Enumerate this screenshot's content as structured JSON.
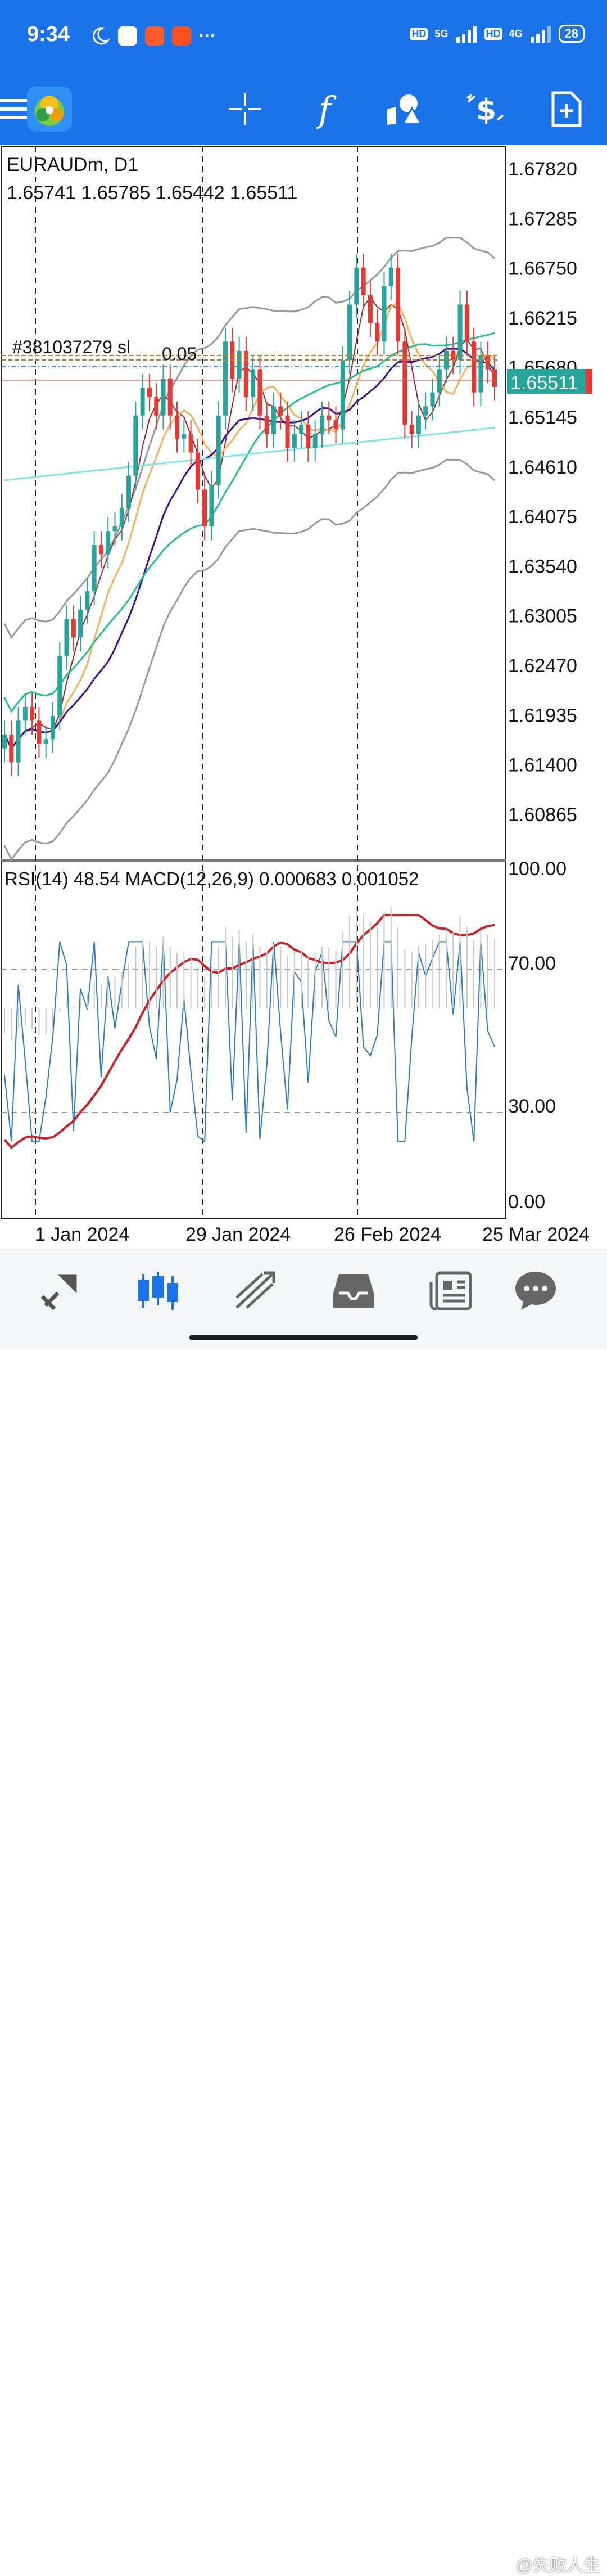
{
  "status_bar": {
    "time": "9:34",
    "more": "···",
    "network_1": "5G",
    "network_2": "4G",
    "hd_1": "HD",
    "hd_2": "HD",
    "battery": "28",
    "icons": [
      "moon-icon",
      "app-icon-flower",
      "app-icon-bag",
      "app-icon-orange"
    ]
  },
  "toolbar": {
    "items": [
      "menu-icon",
      "metatrader-logo",
      "crosshair-icon",
      "indicators-icon",
      "objects-icon",
      "trade-icon",
      "new-order-icon"
    ],
    "function_glyph": "f"
  },
  "chart": {
    "symbol_line": "EURAUDm, D1",
    "ohlc_line": "1.65741 1.65785 1.65442 1.65511",
    "current_price": "1.65511",
    "order_label": "#381037279 sl",
    "order_value": "0.05",
    "price_ticks": [
      "1.67820",
      "1.67285",
      "1.66750",
      "1.66215",
      "1.65680",
      "1.65145",
      "1.64610",
      "1.64075",
      "1.63540",
      "1.63005",
      "1.62470",
      "1.61935",
      "1.61400",
      "1.60865"
    ],
    "indicator_line": "RSI(14) 48.54 MACD(12,26,9) 0.000683 0.001052",
    "indicator_ticks": [
      "100.00",
      "70.00",
      "30.00",
      "0.00"
    ],
    "date_ticks": [
      "1 Jan 2024",
      "29 Jan 2024",
      "26 Feb 2024",
      "25 Mar 2024"
    ],
    "colors": {
      "bull": "#26a69a",
      "bear": "#e53935",
      "price_tag": "#26a69a",
      "toolbar_bg": "#1a73e8",
      "rsi": "#2b7bbf",
      "signal": "#cc1f1f"
    }
  },
  "chart_data": {
    "type": "line",
    "title": "EURAUDm, D1",
    "ylim": [
      1.604,
      1.681
    ],
    "last_close": 1.65511,
    "indicator_ylim": [
      0,
      100
    ],
    "rsi_last": 48.54,
    "macd_main": 0.000683,
    "macd_signal": 0.001052
  },
  "bottom_bar": {
    "items": [
      "quotes-icon",
      "chart-icon",
      "trade-icon",
      "history-icon",
      "news-icon",
      "messages-icon"
    ],
    "watermark": "@失败人生"
  }
}
